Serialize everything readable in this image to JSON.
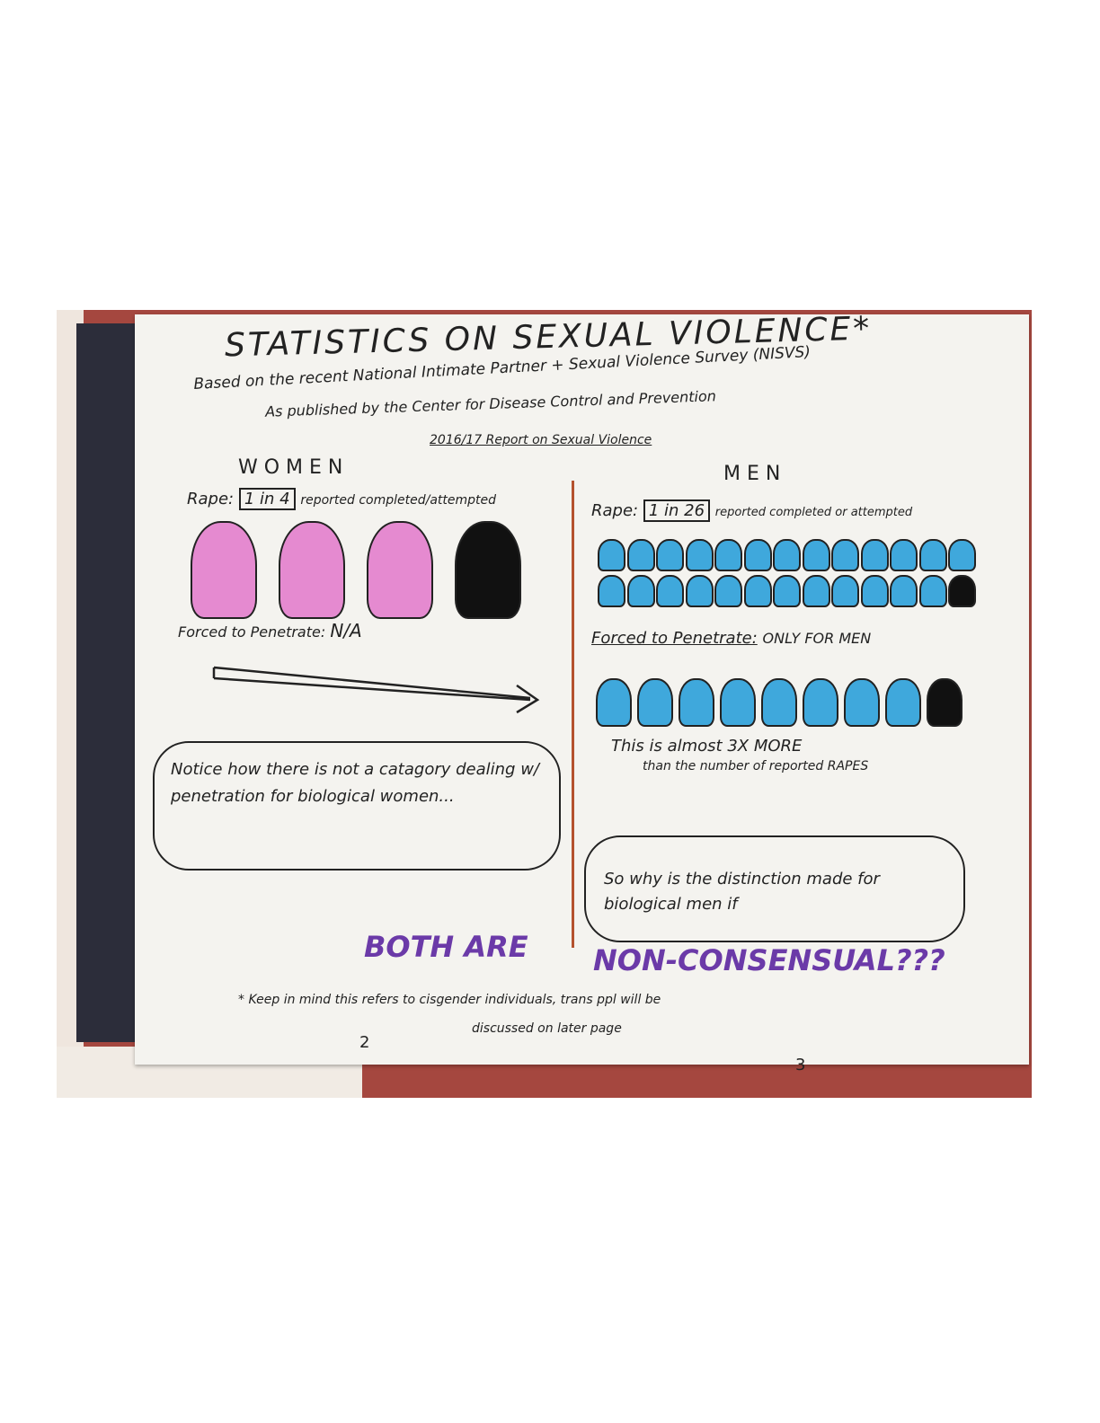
{
  "title": "STATISTICS ON SEXUAL VIOLENCE*",
  "subtitle_1": "Based on the recent National Intimate Partner + Sexual Violence Survey (NISVS)",
  "subtitle_2": "As published by the Center for Disease Control and Prevention",
  "subtitle_3": "2016/17 Report on Sexual Violence",
  "women": {
    "heading": "W O M E N",
    "rape_label": "Rape:",
    "rape_ratio": "1 in 4",
    "rape_note": "reported completed/attempted",
    "figures_total": 4,
    "figures_affected": 1,
    "figure_color": "#e58ad0",
    "forced_label": "Forced to Penetrate:",
    "forced_value": "N/A",
    "cloud_text": "Notice how there is not a catagory dealing w/ penetration for biological women..."
  },
  "men": {
    "heading": "M E N",
    "rape_label": "Rape:",
    "rape_ratio": "1 in 26",
    "rape_note": "reported completed or attempted",
    "figures_total": 26,
    "figures_affected": 1,
    "figure_color": "#3fa8dc",
    "forced_label": "Forced to Penetrate:",
    "forced_value": "ONLY FOR MEN",
    "forced_figures_total": 9,
    "forced_figures_affected": 1,
    "note_1": "This is almost 3X MORE",
    "note_2": "than the number of reported RAPES",
    "cloud_text": "So why is the distinction made for biological men if"
  },
  "conclusion_left": "BOTH ARE",
  "conclusion_right": "NON-CONSENSUAL???",
  "footnote_1": "* Keep in mind this refers to cisgender individuals, trans ppl will be",
  "footnote_2": "discussed on later page",
  "page_left": "2",
  "page_right": "3"
}
